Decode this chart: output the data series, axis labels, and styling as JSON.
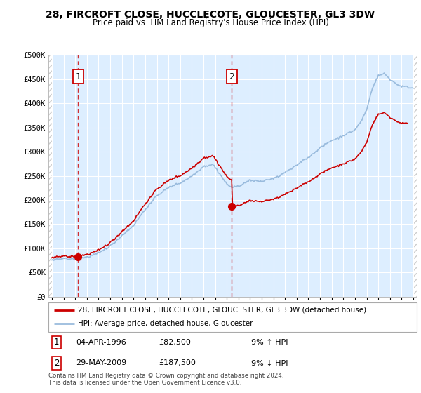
{
  "title1": "28, FIRCROFT CLOSE, HUCCLECOTE, GLOUCESTER, GL3 3DW",
  "title2": "Price paid vs. HM Land Registry's House Price Index (HPI)",
  "ylim": [
    0,
    500000
  ],
  "ytick_vals": [
    0,
    50000,
    100000,
    150000,
    200000,
    250000,
    300000,
    350000,
    400000,
    450000,
    500000
  ],
  "sale1_date": 1996.25,
  "sale1_price": 82500,
  "sale1_label": "1",
  "sale2_date": 2009.42,
  "sale2_price": 187500,
  "sale2_label": "2",
  "legend_property": "28, FIRCROFT CLOSE, HUCCLECOTE, GLOUCESTER, GL3 3DW (detached house)",
  "legend_hpi": "HPI: Average price, detached house, Gloucester",
  "note1_label": "1",
  "note1_date": "04-APR-1996",
  "note1_price": "£82,500",
  "note1_hpi": "9% ↑ HPI",
  "note2_label": "2",
  "note2_date": "29-MAY-2009",
  "note2_price": "£187,500",
  "note2_hpi": "9% ↓ HPI",
  "footer": "Contains HM Land Registry data © Crown copyright and database right 2024.\nThis data is licensed under the Open Government Licence v3.0.",
  "property_line_color": "#cc0000",
  "hpi_line_color": "#99bbdd",
  "vline_color": "#cc0000",
  "bg_main_color": "#ddeeff",
  "xlim_start": 1993.7,
  "xlim_end": 2025.3
}
